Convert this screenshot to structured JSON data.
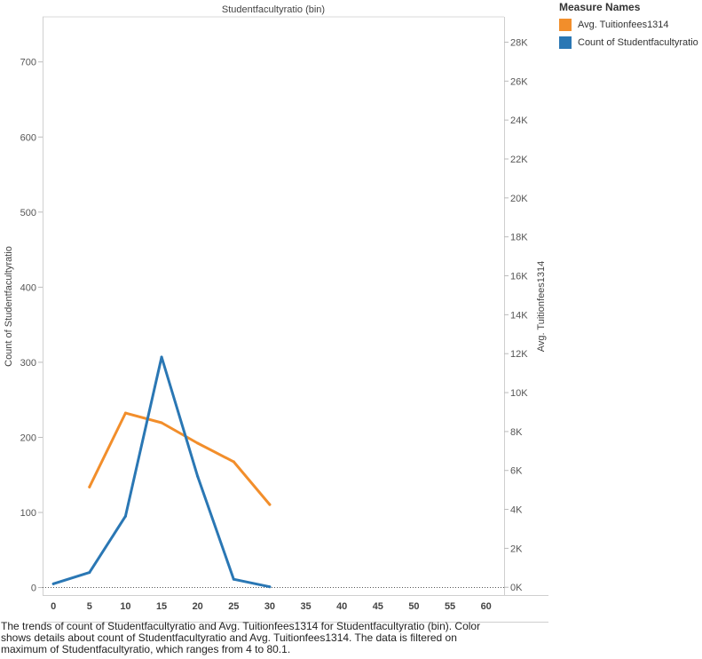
{
  "chart_data": {
    "type": "line",
    "title": "Studentfacultyratio (bin)",
    "x": [
      0,
      5,
      10,
      15,
      20,
      25,
      30,
      35,
      40,
      45,
      50,
      55,
      60
    ],
    "x_ticks": [
      "0",
      "5",
      "10",
      "15",
      "20",
      "25",
      "30",
      "35",
      "40",
      "45",
      "50",
      "55",
      "60"
    ],
    "xlim": [
      -1.5,
      62.5
    ],
    "y_left": {
      "label": "Count of Studentfacultyratio",
      "ticks": [
        "0",
        "100",
        "200",
        "300",
        "400",
        "500",
        "600",
        "700"
      ],
      "ylim": [
        -10,
        760
      ]
    },
    "y_right": {
      "label": "Avg. Tuitionfees1314",
      "ticks": [
        "0K",
        "2K",
        "4K",
        "6K",
        "8K",
        "10K",
        "12K",
        "14K",
        "16K",
        "18K",
        "20K",
        "22K",
        "24K",
        "26K",
        "28K"
      ],
      "ylim": [
        -400,
        29300
      ]
    },
    "series": [
      {
        "name": "Avg. Tuitionfees1314",
        "axis": "right",
        "color": "#f28e2b",
        "x": [
          5,
          10,
          15,
          20,
          25,
          30
        ],
        "values": [
          5150,
          8950,
          8450,
          7400,
          6450,
          4250
        ]
      },
      {
        "name": "Count of Studentfacultyratio",
        "axis": "left",
        "color": "#2a77b4",
        "x": [
          0,
          5,
          10,
          15,
          20,
          25,
          30
        ],
        "values": [
          5,
          20,
          95,
          307,
          148,
          11,
          1
        ]
      }
    ],
    "legend": {
      "title": "Measure Names",
      "position": "top-right"
    },
    "grid": false,
    "zero_line": "dotted"
  },
  "caption": "The trends of count of Studentfacultyratio and Avg. Tuitionfees1314 for Studentfacultyratio (bin).  Color shows details about count of Studentfacultyratio and Avg. Tuitionfees1314. The data is filtered on maximum of  Studentfacultyratio, which ranges from 4 to 80.1."
}
